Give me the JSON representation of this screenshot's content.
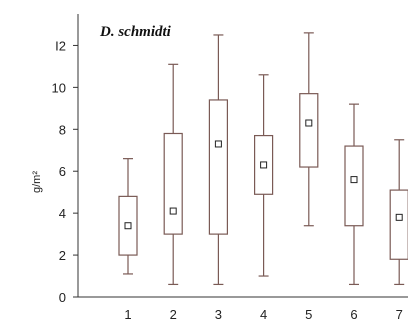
{
  "chart_data": {
    "type": "box",
    "title": "D. schmidti",
    "xlabel": "",
    "ylabel": "g/m²",
    "ylim": [
      0,
      13.5
    ],
    "y_ticks": [
      0,
      2,
      4,
      6,
      8,
      10,
      12
    ],
    "y_tick_labels": [
      "0",
      "2",
      "4",
      "6",
      "8",
      "10",
      "I2"
    ],
    "categories": [
      "1",
      "2",
      "3",
      "4",
      "5",
      "6",
      "7"
    ],
    "boxes": [
      {
        "category": "1",
        "min": 1.1,
        "q1": 2.0,
        "median_marker": 3.4,
        "q3": 4.8,
        "max": 6.6
      },
      {
        "category": "2",
        "min": 0.6,
        "q1": 3.0,
        "median_marker": 4.1,
        "q3": 7.8,
        "max": 11.1
      },
      {
        "category": "3",
        "min": 0.6,
        "q1": 3.0,
        "median_marker": 7.3,
        "q3": 9.4,
        "max": 12.5
      },
      {
        "category": "4",
        "min": 1.0,
        "q1": 4.9,
        "median_marker": 6.3,
        "q3": 7.7,
        "max": 10.6
      },
      {
        "category": "5",
        "min": 3.4,
        "q1": 6.2,
        "median_marker": 8.3,
        "q3": 9.7,
        "max": 12.6
      },
      {
        "category": "6",
        "min": 0.6,
        "q1": 3.4,
        "median_marker": 5.6,
        "q3": 7.2,
        "max": 9.2
      },
      {
        "category": "7",
        "min": 0.6,
        "q1": 1.8,
        "median_marker": 3.8,
        "q3": 5.1,
        "max": 7.5
      }
    ],
    "grid": false,
    "legend": "none"
  },
  "colors": {
    "box_stroke": "#7a5a55",
    "axis": "#333333",
    "marker_stroke": "#222222"
  }
}
